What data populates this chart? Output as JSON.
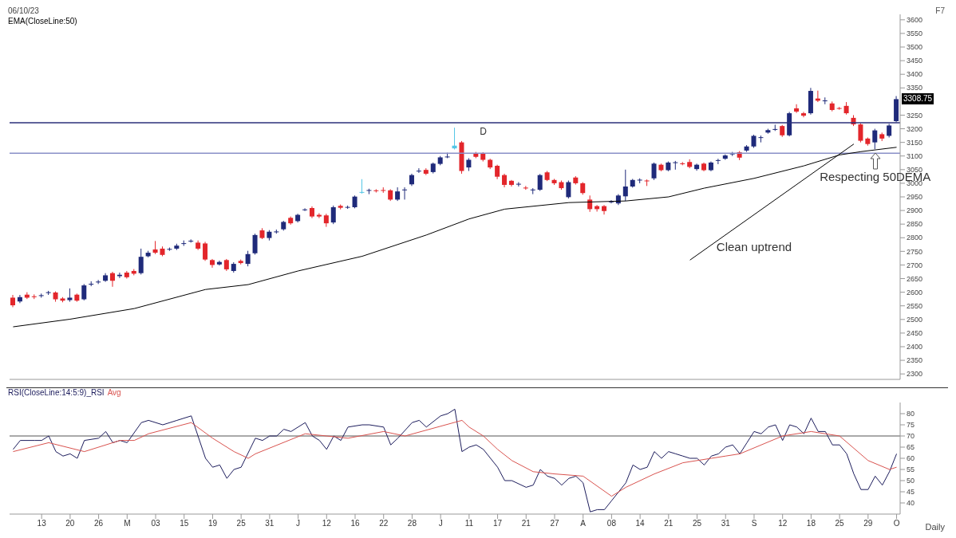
{
  "chart_data": [
    {
      "type": "candlestick",
      "title": "06/10/23",
      "tick_labels": "y",
      "categories": [
        null,
        null,
        null,
        null,
        null,
        null,
        null,
        null,
        null,
        null,
        null,
        null,
        null,
        null,
        null,
        null,
        null,
        null,
        null,
        null,
        null,
        null,
        null,
        null,
        null,
        null,
        null,
        null,
        null,
        null,
        null,
        null,
        null,
        null,
        null,
        null,
        null,
        null,
        null,
        null,
        null,
        null,
        null,
        null,
        null,
        null,
        null,
        null,
        null,
        null,
        null,
        null,
        null,
        null,
        null,
        null,
        null,
        null,
        null,
        null,
        null,
        null,
        null,
        null,
        null,
        null,
        null,
        null,
        null,
        null,
        null,
        null,
        null,
        null,
        null,
        null,
        null,
        null,
        null,
        null,
        null,
        null,
        null,
        null,
        null,
        null,
        null,
        null,
        null,
        null,
        null,
        null,
        null,
        null,
        null,
        null,
        null,
        null,
        null,
        null,
        null,
        null,
        null,
        null,
        null,
        null,
        null,
        null,
        null,
        null,
        null,
        null,
        null,
        null,
        null,
        null,
        null,
        null,
        null,
        null,
        null,
        null,
        null,
        null,
        null
      ],
      "ohlc": [
        [
          2580,
          2590,
          2545,
          2552
        ],
        [
          2566,
          2590,
          2560,
          2582
        ],
        [
          2591,
          2600,
          2575,
          2580
        ],
        [
          2585,
          2592,
          2575,
          2582
        ],
        [
          2586,
          2595,
          2580,
          2589
        ],
        [
          2597,
          2605,
          2590,
          2600
        ],
        [
          2599,
          2603,
          2565,
          2574
        ],
        [
          2577,
          2582,
          2563,
          2569
        ],
        [
          2571,
          2614,
          2565,
          2580
        ],
        [
          2591,
          2595,
          2565,
          2569
        ],
        [
          2574,
          2630,
          2570,
          2625
        ],
        [
          2628,
          2640,
          2622,
          2631
        ],
        [
          2636,
          2645,
          2630,
          2639
        ],
        [
          2642,
          2670,
          2638,
          2662
        ],
        [
          2670,
          2675,
          2620,
          2642
        ],
        [
          2659,
          2672,
          2652,
          2664
        ],
        [
          2672,
          2678,
          2650,
          2655
        ],
        [
          2678,
          2685,
          2662,
          2668
        ],
        [
          2670,
          2760,
          2665,
          2730
        ],
        [
          2732,
          2752,
          2728,
          2745
        ],
        [
          2757,
          2788,
          2740,
          2745
        ],
        [
          2760,
          2768,
          2732,
          2737
        ],
        [
          2757,
          2764,
          2752,
          2759
        ],
        [
          2760,
          2778,
          2755,
          2771
        ],
        [
          2778,
          2790,
          2770,
          2780
        ],
        [
          2787,
          2794,
          2782,
          2789
        ],
        [
          2782,
          2790,
          2755,
          2760
        ],
        [
          2779,
          2785,
          2715,
          2720
        ],
        [
          2718,
          2722,
          2690,
          2700
        ],
        [
          2702,
          2716,
          2698,
          2711
        ],
        [
          2718,
          2722,
          2678,
          2684
        ],
        [
          2678,
          2710,
          2672,
          2704
        ],
        [
          2715,
          2720,
          2702,
          2707
        ],
        [
          2704,
          2752,
          2695,
          2740
        ],
        [
          2743,
          2815,
          2738,
          2810
        ],
        [
          2827,
          2835,
          2795,
          2799
        ],
        [
          2799,
          2828,
          2790,
          2822
        ],
        [
          2820,
          2830,
          2815,
          2823
        ],
        [
          2831,
          2862,
          2826,
          2858
        ],
        [
          2873,
          2878,
          2848,
          2853
        ],
        [
          2861,
          2888,
          2856,
          2884
        ],
        [
          2902,
          2908,
          2898,
          2904
        ],
        [
          2909,
          2915,
          2872,
          2878
        ],
        [
          2884,
          2890,
          2872,
          2878
        ],
        [
          2882,
          2888,
          2840,
          2853
        ],
        [
          2856,
          2918,
          2850,
          2912
        ],
        [
          2917,
          2922,
          2904,
          2910
        ],
        [
          2911,
          2918,
          2906,
          2913
        ],
        [
          2912,
          2955,
          2908,
          2951
        ],
        [
          2966,
          3015,
          2962,
          2968
        ],
        [
          2973,
          2980,
          2960,
          2975
        ],
        [
          2974,
          2978,
          2966,
          2972
        ],
        [
          2975,
          2985,
          2965,
          2973
        ],
        [
          2974,
          2978,
          2935,
          2940
        ],
        [
          2940,
          2985,
          2935,
          2970
        ],
        [
          2975,
          2985,
          2940,
          2977
        ],
        [
          2996,
          3035,
          2990,
          3030
        ],
        [
          3044,
          3055,
          3038,
          3046
        ],
        [
          3049,
          3055,
          3030,
          3035
        ],
        [
          3041,
          3076,
          3036,
          3072
        ],
        [
          3071,
          3100,
          3066,
          3095
        ],
        [
          3096,
          3112,
          3092,
          3098
        ],
        [
          3128,
          3204,
          3124,
          3138
        ],
        [
          3150,
          3155,
          3035,
          3045
        ],
        [
          3058,
          3092,
          3045,
          3086
        ],
        [
          3109,
          3115,
          3092,
          3097
        ],
        [
          3109,
          3114,
          3080,
          3086
        ],
        [
          3086,
          3090,
          3052,
          3058
        ],
        [
          3064,
          3068,
          3015,
          3024
        ],
        [
          3030,
          3035,
          2985,
          2994
        ],
        [
          3009,
          3012,
          2988,
          2994
        ],
        [
          2996,
          3004,
          2988,
          2998
        ],
        [
          2984,
          2990,
          2976,
          2981
        ],
        [
          2974,
          2982,
          2960,
          2977
        ],
        [
          2976,
          3034,
          2972,
          3030
        ],
        [
          3040,
          3045,
          3008,
          3012
        ],
        [
          3012,
          3016,
          2994,
          3000
        ],
        [
          3004,
          3010,
          2976,
          2982
        ],
        [
          2949,
          3010,
          2944,
          3004
        ],
        [
          3021,
          3026,
          2995,
          3000
        ],
        [
          3000,
          3004,
          2958,
          2964
        ],
        [
          2940,
          2955,
          2895,
          2905
        ],
        [
          2916,
          2920,
          2896,
          2905
        ],
        [
          2916,
          2920,
          2885,
          2898
        ],
        [
          2931,
          2938,
          2926,
          2933
        ],
        [
          2926,
          2960,
          2920,
          2955
        ],
        [
          2952,
          3050,
          2935,
          2988
        ],
        [
          2988,
          3016,
          2984,
          3012
        ],
        [
          3011,
          3018,
          3000,
          3013
        ],
        [
          3010,
          3014,
          2990,
          3008
        ],
        [
          3018,
          3076,
          3012,
          3072
        ],
        [
          3068,
          3072,
          3044,
          3048
        ],
        [
          3048,
          3080,
          3044,
          3076
        ],
        [
          3075,
          3082,
          3050,
          3077
        ],
        [
          3073,
          3078,
          3066,
          3071
        ],
        [
          3078,
          3088,
          3055,
          3060
        ],
        [
          3052,
          3072,
          3046,
          3068
        ],
        [
          3072,
          3076,
          3044,
          3048
        ],
        [
          3048,
          3080,
          3044,
          3076
        ],
        [
          3083,
          3090,
          3070,
          3085
        ],
        [
          3090,
          3106,
          3086,
          3102
        ],
        [
          3107,
          3115,
          3100,
          3109
        ],
        [
          3114,
          3118,
          3085,
          3094
        ],
        [
          3120,
          3140,
          3115,
          3135
        ],
        [
          3135,
          3178,
          3130,
          3174
        ],
        [
          3167,
          3175,
          3150,
          3169
        ],
        [
          3186,
          3200,
          3182,
          3195
        ],
        [
          3197,
          3215,
          3192,
          3199
        ],
        [
          3210,
          3214,
          3170,
          3176
        ],
        [
          3176,
          3262,
          3172,
          3257
        ],
        [
          3275,
          3290,
          3258,
          3263
        ],
        [
          3257,
          3262,
          3242,
          3248
        ],
        [
          3257,
          3350,
          3252,
          3339
        ],
        [
          3311,
          3340,
          3298,
          3303
        ],
        [
          3302,
          3315,
          3290,
          3304
        ],
        [
          3293,
          3300,
          3264,
          3269
        ],
        [
          3276,
          3280,
          3270,
          3274
        ],
        [
          3284,
          3298,
          3252,
          3257
        ],
        [
          3240,
          3250,
          3210,
          3216
        ],
        [
          3216,
          3220,
          3150,
          3156
        ],
        [
          3164,
          3168,
          3138,
          3144
        ],
        [
          3150,
          3200,
          3125,
          3194
        ],
        [
          3180,
          3186,
          3155,
          3164
        ],
        [
          3174,
          3218,
          3168,
          3212
        ],
        [
          3228,
          3320,
          3224,
          3308.75
        ]
      ],
      "colors": [
        "#e3262b",
        "#1f2a7a",
        "#e3262b",
        "#e3262b",
        "#1f2a7a",
        "#1f2a7a",
        "#e3262b",
        "#e3262b",
        "#1f2a7a",
        "#e3262b",
        "#1f2a7a",
        "#1f2a7a",
        "#1f2a7a",
        "#1f2a7a",
        "#e3262b",
        "#1f2a7a",
        "#e3262b",
        "#e3262b",
        "#1f2a7a",
        "#1f2a7a",
        "#e3262b",
        "#e3262b",
        "#1f2a7a",
        "#1f2a7a",
        "#1f2a7a",
        "#1f2a7a",
        "#e3262b",
        "#e3262b",
        "#e3262b",
        "#1f2a7a",
        "#e3262b",
        "#1f2a7a",
        "#e3262b",
        "#1f2a7a",
        "#1f2a7a",
        "#e3262b",
        "#1f2a7a",
        "#1f2a7a",
        "#1f2a7a",
        "#e3262b",
        "#1f2a7a",
        "#1f2a7a",
        "#e3262b",
        "#e3262b",
        "#e3262b",
        "#1f2a7a",
        "#e3262b",
        "#1f2a7a",
        "#1f2a7a",
        "#53c6e6",
        "#1f2a7a",
        "#e3262b",
        "#e3262b",
        "#e3262b",
        "#1f2a7a",
        "#1f2a7a",
        "#1f2a7a",
        "#1f2a7a",
        "#e3262b",
        "#1f2a7a",
        "#1f2a7a",
        "#1f2a7a",
        "#53c6e6",
        "#e3262b",
        "#1f2a7a",
        "#e3262b",
        "#e3262b",
        "#e3262b",
        "#e3262b",
        "#e3262b",
        "#e3262b",
        "#1f2a7a",
        "#e3262b",
        "#1f2a7a",
        "#1f2a7a",
        "#e3262b",
        "#e3262b",
        "#e3262b",
        "#1f2a7a",
        "#e3262b",
        "#e3262b",
        "#e3262b",
        "#e3262b",
        "#e3262b",
        "#1f2a7a",
        "#1f2a7a",
        "#1f2a7a",
        "#1f2a7a",
        "#1f2a7a",
        "#e3262b",
        "#1f2a7a",
        "#e3262b",
        "#1f2a7a",
        "#1f2a7a",
        "#e3262b",
        "#e3262b",
        "#1f2a7a",
        "#e3262b",
        "#1f2a7a",
        "#1f2a7a",
        "#1f2a7a",
        "#1f2a7a",
        "#e3262b",
        "#1f2a7a",
        "#1f2a7a",
        "#1f2a7a",
        "#1f2a7a",
        "#1f2a7a",
        "#e3262b",
        "#1f2a7a",
        "#e3262b",
        "#e3262b",
        "#1f2a7a",
        "#e3262b",
        "#1f2a7a",
        "#e3262b",
        "#e3262b",
        "#e3262b",
        "#e3262b",
        "#e3262b",
        "#e3262b",
        "#1f2a7a",
        "#e3262b",
        "#1f2a7a",
        "#1f2a7a"
      ],
      "series": [
        {
          "type": "line",
          "name": "EMA(CloseLine:50)",
          "color": "#000000",
          "values": [
            2473,
            null,
            null,
            null,
            null,
            null,
            null,
            null,
            2501,
            null,
            null,
            null,
            null,
            null,
            null,
            null,
            null,
            2540,
            null,
            null,
            null,
            null,
            null,
            null,
            null,
            null,
            null,
            2610,
            null,
            null,
            null,
            null,
            null,
            2628,
            null,
            null,
            null,
            null,
            null,
            null,
            2678,
            null,
            null,
            null,
            null,
            null,
            null,
            null,
            null,
            2732,
            null,
            null,
            null,
            null,
            null,
            null,
            null,
            null,
            2810,
            null,
            null,
            null,
            null,
            null,
            2869,
            null,
            null,
            null,
            null,
            2905,
            null,
            null,
            null,
            null,
            null,
            null,
            null,
            null,
            2929,
            null,
            null,
            null,
            null,
            null,
            null,
            null,
            2935,
            null,
            null,
            null,
            null,
            null,
            2950,
            null,
            null,
            null,
            null,
            2982,
            null,
            null,
            null,
            null,
            null,
            null,
            3018,
            null,
            null,
            null,
            null,
            null,
            null,
            3064,
            null,
            null,
            null,
            null,
            3104,
            null,
            null,
            3116,
            null,
            null,
            null,
            null,
            3132
          ]
        },
        {
          "type": "line",
          "color": "#000000",
          "values": [
            null,
            null,
            null,
            null,
            null,
            null,
            null,
            null,
            null,
            null,
            null,
            null,
            null,
            null,
            null,
            null,
            null,
            null,
            null,
            null,
            null,
            null,
            null,
            null,
            null,
            null,
            null,
            null,
            null,
            null,
            null,
            null,
            null,
            null,
            null,
            null,
            null,
            null,
            null,
            null,
            null,
            null,
            null,
            null,
            null,
            null,
            null,
            null,
            null,
            null,
            null,
            null,
            null,
            null,
            null,
            null,
            null,
            null,
            null,
            null,
            null,
            null,
            null,
            null,
            null,
            null,
            null,
            null,
            null,
            null,
            null,
            null,
            null,
            null,
            null,
            null,
            null,
            null,
            null,
            null,
            null,
            null,
            null,
            null,
            null,
            null,
            null,
            null,
            null,
            null,
            null,
            null,
            null,
            null,
            null,
            2718,
            null,
            null,
            null,
            null,
            null,
            null,
            null,
            null,
            null,
            null,
            null,
            null,
            null,
            null,
            null,
            null,
            null,
            null,
            null,
            null,
            null,
            null,
            3144,
            null,
            null,
            null,
            null,
            null,
            null
          ]
        }
      ],
      "ylim": [
        2280,
        3620
      ],
      "yticks": [
        2300,
        2350,
        2400,
        2450,
        2500,
        2550,
        2600,
        2650,
        2700,
        2750,
        2800,
        2850,
        2900,
        2950,
        3000,
        3050,
        3100,
        3150,
        3200,
        3250,
        3350,
        3400,
        3450,
        3500,
        3550,
        3600
      ],
      "ref_lines": [
        {
          "axis": "y",
          "value": 3222,
          "color": "#2b2f7a"
        },
        {
          "axis": "y",
          "value": 3110,
          "color": "#8a90c8"
        }
      ],
      "annotations": [
        "D",
        "Clean uptrend",
        "Respecting 50DEMA",
        "F7",
        {
          "text": "3308.75",
          "y": 3308.75
        }
      ]
    },
    {
      "type": "line",
      "categories": [
        null,
        null,
        null,
        null,
        "13",
        null,
        null,
        null,
        "20",
        null,
        null,
        null,
        "26",
        null,
        null,
        null,
        "M",
        null,
        null,
        null,
        "03",
        null,
        null,
        null,
        "15",
        null,
        null,
        null,
        "19",
        null,
        null,
        null,
        "25",
        null,
        null,
        null,
        "31",
        null,
        null,
        null,
        "J",
        null,
        null,
        null,
        "12",
        null,
        null,
        null,
        "16",
        null,
        null,
        null,
        "22",
        null,
        null,
        null,
        "28",
        null,
        null,
        null,
        "J",
        null,
        null,
        null,
        "11",
        null,
        null,
        null,
        "17",
        null,
        null,
        null,
        "21",
        null,
        null,
        null,
        "27",
        null,
        null,
        null,
        "A",
        null,
        null,
        null,
        "08",
        null,
        null,
        null,
        "14",
        null,
        null,
        null,
        "21",
        null,
        null,
        null,
        "25",
        null,
        null,
        null,
        "31",
        null,
        null,
        null,
        "S",
        null,
        null,
        null,
        "12",
        null,
        null,
        null,
        "18",
        null,
        null,
        null,
        "25",
        null,
        null,
        null,
        "29",
        null,
        null,
        null,
        "O"
      ],
      "series": [
        {
          "name": "RSI(CloseLine:14:5:9)_RSI",
          "color": "#1c1c5c",
          "values": [
            64,
            68,
            null,
            68,
            68,
            70,
            63,
            61,
            62,
            60,
            68,
            null,
            69,
            72,
            67,
            68,
            67,
            null,
            76,
            77,
            null,
            75,
            null,
            77,
            null,
            79,
            null,
            60,
            56,
            57,
            51,
            55,
            56,
            null,
            69,
            68,
            70,
            70,
            73,
            72,
            null,
            76,
            70,
            68,
            64,
            70,
            68,
            74,
            null,
            75,
            75,
            null,
            74,
            66,
            69,
            null,
            76,
            77,
            74,
            null,
            79,
            80,
            82,
            63,
            65,
            66,
            64,
            null,
            56,
            50,
            50,
            null,
            47,
            48,
            55,
            52,
            51,
            48,
            51,
            52,
            49,
            36,
            37,
            37,
            41,
            null,
            49,
            57,
            55,
            56,
            63,
            60,
            63,
            62,
            61,
            60,
            60,
            57,
            61,
            62,
            65,
            66,
            62,
            67,
            72,
            71,
            74,
            75,
            68,
            75,
            74,
            71,
            78,
            72,
            72,
            66,
            66,
            62,
            53,
            46,
            46,
            52,
            48,
            54,
            62
          ]
        },
        {
          "name": "Avg",
          "color": "#d9534f",
          "values": [
            63,
            null,
            null,
            null,
            null,
            67,
            null,
            null,
            null,
            null,
            63,
            null,
            null,
            null,
            null,
            68,
            null,
            68,
            null,
            71,
            null,
            null,
            null,
            null,
            null,
            76,
            null,
            null,
            69,
            null,
            null,
            63,
            null,
            60,
            62,
            null,
            null,
            null,
            null,
            null,
            null,
            71,
            null,
            null,
            70,
            null,
            null,
            69,
            null,
            null,
            null,
            null,
            72,
            null,
            null,
            70,
            null,
            null,
            null,
            null,
            null,
            null,
            null,
            77,
            74,
            null,
            70,
            null,
            64,
            null,
            59,
            null,
            null,
            54,
            null,
            null,
            53,
            null,
            null,
            null,
            52,
            null,
            null,
            null,
            43,
            null,
            47,
            null,
            null,
            null,
            53,
            null,
            null,
            null,
            58,
            null,
            null,
            null,
            60,
            null,
            61,
            null,
            62,
            null,
            null,
            null,
            null,
            null,
            70,
            null,
            null,
            null,
            72,
            null,
            71,
            null,
            70,
            null,
            null,
            null,
            59,
            null,
            null,
            55,
            56
          ]
        }
      ],
      "ylim": [
        35,
        85
      ],
      "yticks": [
        40,
        45,
        50,
        55,
        60,
        65,
        70,
        75,
        80
      ],
      "ref_lines": [
        {
          "axis": "y",
          "value": 70,
          "color": "#555555"
        }
      ],
      "annotations": [
        "Daily"
      ]
    }
  ]
}
